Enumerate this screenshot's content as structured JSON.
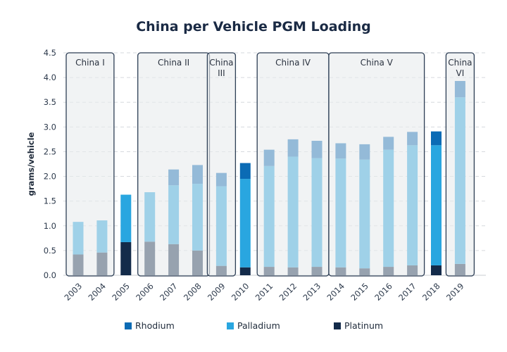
{
  "chart_data": {
    "type": "bar",
    "stacked": true,
    "title": "China per Vehicle PGM Loading",
    "xlabel": "",
    "ylabel": "grams/vehicle",
    "ylim": [
      0,
      4.5
    ],
    "yticks": [
      "0.0",
      "0.5",
      "1.0",
      "1.5",
      "2.0",
      "2.5",
      "3.0",
      "3.5",
      "4.0",
      "4.5"
    ],
    "grid": true,
    "legend_position": "bottom",
    "categories": [
      "2003",
      "2004",
      "2005",
      "2006",
      "2007",
      "2008",
      "2009",
      "2010",
      "2011",
      "2012",
      "2013",
      "2014",
      "2015",
      "2016",
      "2017",
      "2018",
      "2019"
    ],
    "series": [
      {
        "name": "Platinum",
        "color": "#132b4a",
        "values": [
          0.42,
          0.46,
          0.67,
          0.68,
          0.63,
          0.5,
          0.19,
          0.16,
          0.17,
          0.16,
          0.17,
          0.16,
          0.14,
          0.17,
          0.2,
          0.2,
          0.23
        ]
      },
      {
        "name": "Palladium",
        "color": "#29a6e0",
        "values": [
          0.66,
          0.65,
          0.96,
          1.0,
          1.19,
          1.35,
          1.61,
          1.79,
          2.04,
          2.24,
          2.2,
          2.2,
          2.2,
          2.37,
          2.43,
          2.43,
          3.37
        ]
      },
      {
        "name": "Rhodium",
        "color": "#0b6bb5",
        "values": [
          0.0,
          0.0,
          0.0,
          0.0,
          0.32,
          0.38,
          0.27,
          0.32,
          0.33,
          0.35,
          0.35,
          0.31,
          0.31,
          0.26,
          0.27,
          0.28,
          0.33
        ]
      }
    ],
    "totals": [
      1.08,
      1.11,
      1.63,
      1.68,
      2.14,
      2.23,
      2.07,
      2.27,
      2.54,
      2.75,
      2.72,
      2.67,
      2.65,
      2.8,
      2.9,
      2.91,
      3.93
    ],
    "annotations": [
      {
        "label": "China I",
        "from": "2003",
        "to": "2004"
      },
      {
        "label": "China II",
        "from": "2006",
        "to": "2008"
      },
      {
        "label": "China III",
        "from": "2009",
        "to": "2009"
      },
      {
        "label": "China IV",
        "from": "2011",
        "to": "2013"
      },
      {
        "label": "China V",
        "from": "2014",
        "to": "2017"
      },
      {
        "label": "China VI",
        "from": "2019",
        "to": "2019"
      }
    ],
    "legend": [
      "Rhodium",
      "Palladium",
      "Platinum"
    ]
  }
}
